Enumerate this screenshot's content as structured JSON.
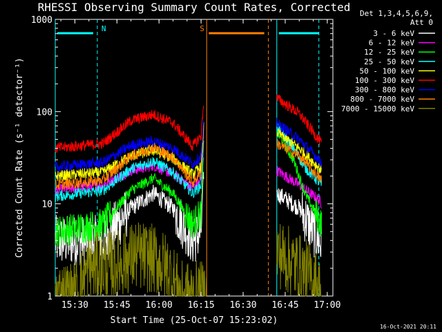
{
  "chart_data": {
    "type": "line",
    "title": "RHESSI Observing Summary Count Rates, Corrected",
    "xlabel": "Start Time (25-Oct-07 15:23:02)",
    "ylabel": "Corrected Count Rate (s⁻¹ detector⁻¹)",
    "y_scale": "log",
    "ylim": [
      1,
      1000
    ],
    "xlim": [
      "15:23",
      "17:02"
    ],
    "x_tick_labels": [
      "15:30",
      "15:45",
      "16:00",
      "16:15",
      "16:30",
      "16:45",
      "17:00"
    ],
    "y_tick_labels": [
      "1",
      "10",
      "100",
      "1000"
    ],
    "legend_header": [
      "Det 1,3,4,5,6,9,",
      "Att 0"
    ],
    "legend_position": "right",
    "annotations": [
      {
        "label": "N",
        "text": "N",
        "start": "15:23",
        "end": "15:38",
        "color": "#00ffff"
      },
      {
        "label": "S",
        "text": "S",
        "start": "16:17",
        "end": "16:39",
        "color": "#ff8000"
      }
    ],
    "night_lines": [
      "15:23",
      "15:38",
      "16:42",
      "16:57"
    ],
    "saa_lines": [
      "16:17",
      "16:39"
    ],
    "gap": [
      "16:17",
      "16:42"
    ],
    "series": [
      {
        "name": "3 - 6 keV",
        "color": "#ffffff",
        "seg1": [
          [
            "15:23",
            4
          ],
          [
            "15:40",
            4
          ],
          [
            "15:50",
            9
          ],
          [
            "15:58",
            13
          ],
          [
            "16:05",
            9
          ],
          [
            "16:12",
            4
          ],
          [
            "16:15",
            5
          ],
          [
            "16:16",
            25
          ]
        ],
        "seg2": [
          [
            "16:42",
            13
          ],
          [
            "16:50",
            9
          ],
          [
            "16:57",
            4
          ],
          [
            "16:58",
            3.5
          ]
        ]
      },
      {
        "name": "6 - 12 keV",
        "color": "#ff00ff",
        "seg1": [
          [
            "15:23",
            14
          ],
          [
            "15:40",
            16
          ],
          [
            "15:50",
            23
          ],
          [
            "15:58",
            26
          ],
          [
            "16:05",
            21
          ],
          [
            "16:12",
            15
          ],
          [
            "16:15",
            18
          ],
          [
            "16:16",
            45
          ]
        ],
        "seg2": [
          [
            "16:42",
            23
          ],
          [
            "16:50",
            16
          ],
          [
            "16:57",
            11
          ],
          [
            "16:58",
            10
          ]
        ]
      },
      {
        "name": "12 - 25 keV",
        "color": "#00ff00",
        "seg1": [
          [
            "15:23",
            5
          ],
          [
            "15:40",
            6
          ],
          [
            "15:50",
            14
          ],
          [
            "15:58",
            19
          ],
          [
            "16:05",
            13
          ],
          [
            "16:12",
            6
          ],
          [
            "16:15",
            8
          ],
          [
            "16:16",
            40
          ]
        ],
        "seg2": [
          [
            "16:42",
            60
          ],
          [
            "16:48",
            30
          ],
          [
            "16:52",
            13
          ],
          [
            "16:58",
            6
          ]
        ]
      },
      {
        "name": "25 - 50 keV",
        "color": "#00ffff",
        "seg1": [
          [
            "15:23",
            12
          ],
          [
            "15:40",
            14
          ],
          [
            "15:50",
            24
          ],
          [
            "15:58",
            29
          ],
          [
            "16:05",
            22
          ],
          [
            "16:12",
            13
          ],
          [
            "16:15",
            16
          ],
          [
            "16:16",
            60
          ]
        ],
        "seg2": [
          [
            "16:42",
            70
          ],
          [
            "16:48",
            40
          ],
          [
            "16:52",
            25
          ],
          [
            "16:58",
            16
          ]
        ]
      },
      {
        "name": "50 - 100 keV",
        "color": "#ffff00",
        "seg1": [
          [
            "15:23",
            20
          ],
          [
            "15:40",
            22
          ],
          [
            "15:50",
            33
          ],
          [
            "15:58",
            38
          ],
          [
            "16:05",
            31
          ],
          [
            "16:12",
            21
          ],
          [
            "16:15",
            25
          ],
          [
            "16:16",
            75
          ]
        ],
        "seg2": [
          [
            "16:42",
            60
          ],
          [
            "16:50",
            40
          ],
          [
            "16:58",
            23
          ]
        ]
      },
      {
        "name": "100 - 300 keV",
        "color": "#ff0000",
        "seg1": [
          [
            "15:23",
            40
          ],
          [
            "15:40",
            45
          ],
          [
            "15:50",
            80
          ],
          [
            "15:58",
            93
          ],
          [
            "16:05",
            75
          ],
          [
            "16:12",
            42
          ],
          [
            "16:15",
            55
          ],
          [
            "16:16",
            140
          ]
        ],
        "seg2": [
          [
            "16:42",
            140
          ],
          [
            "16:50",
            95
          ],
          [
            "16:58",
            45
          ]
        ]
      },
      {
        "name": "300 - 800 keV",
        "color": "#0000ff",
        "seg1": [
          [
            "15:23",
            25
          ],
          [
            "15:40",
            28
          ],
          [
            "15:50",
            43
          ],
          [
            "15:58",
            48
          ],
          [
            "16:05",
            40
          ],
          [
            "16:12",
            27
          ],
          [
            "16:15",
            33
          ],
          [
            "16:16",
            80
          ]
        ],
        "seg2": [
          [
            "16:42",
            75
          ],
          [
            "16:50",
            50
          ],
          [
            "16:58",
            28
          ]
        ]
      },
      {
        "name": "800 - 7000 keV",
        "color": "#ff8000",
        "seg1": [
          [
            "15:23",
            16
          ],
          [
            "15:40",
            18
          ],
          [
            "15:50",
            33
          ],
          [
            "15:58",
            41
          ],
          [
            "16:05",
            32
          ],
          [
            "16:12",
            17
          ],
          [
            "16:15",
            22
          ],
          [
            "16:16",
            70
          ]
        ],
        "seg2": [
          [
            "16:42",
            45
          ],
          [
            "16:50",
            33
          ],
          [
            "16:58",
            18
          ]
        ]
      },
      {
        "name": "7000 - 15000 keV",
        "color": "#808000",
        "seg1": [
          [
            "15:23",
            1
          ],
          [
            "15:30",
            1
          ],
          [
            "15:35",
            2
          ],
          [
            "15:45",
            2.2
          ],
          [
            "15:52",
            2.8
          ],
          [
            "15:58",
            2.5
          ],
          [
            "16:03",
            2
          ],
          [
            "16:08",
            1
          ],
          [
            "16:17",
            1
          ]
        ],
        "seg2": [
          [
            "16:42",
            3
          ],
          [
            "16:50",
            2
          ],
          [
            "16:55",
            1.5
          ],
          [
            "16:58",
            1
          ]
        ]
      }
    ]
  },
  "footer": {
    "timestamp": "16-Oct-2021 20:11"
  }
}
